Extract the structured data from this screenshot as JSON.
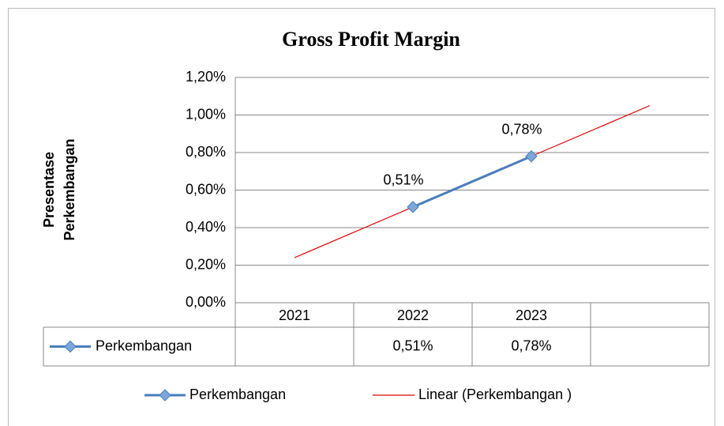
{
  "chart_data": {
    "type": "line",
    "title": "Gross Profit Margin",
    "y_label": [
      "Presentase",
      "Perkembangan"
    ],
    "categories": [
      "2021",
      "2022",
      "2023",
      null
    ],
    "series": [
      {
        "name": "Perkembangan",
        "color": "#4a7ebb",
        "marker_color": "#7ea6d8",
        "values": [
          null,
          0.51,
          0.78,
          null
        ],
        "value_labels": [
          null,
          "0,51%",
          "0,78%",
          null
        ]
      }
    ],
    "trendline": {
      "name": "Linear (Perkembangan )",
      "color": "#e00000",
      "values": [
        0.24,
        0.51,
        0.78,
        1.05
      ]
    },
    "ylim": [
      0,
      1.2
    ],
    "yticks": [
      {
        "value": 0,
        "label": "0,00%"
      },
      {
        "value": 0.2,
        "label": "0,20%"
      },
      {
        "value": 0.4,
        "label": "0,40%"
      },
      {
        "value": 0.6,
        "label": "0,60%"
      },
      {
        "value": 0.8,
        "label": "0,80%"
      },
      {
        "value": 1.0,
        "label": "1,00%"
      },
      {
        "value": 1.2,
        "label": "1,20%"
      }
    ],
    "grid": true,
    "data_table": true,
    "legend": "bottom"
  }
}
